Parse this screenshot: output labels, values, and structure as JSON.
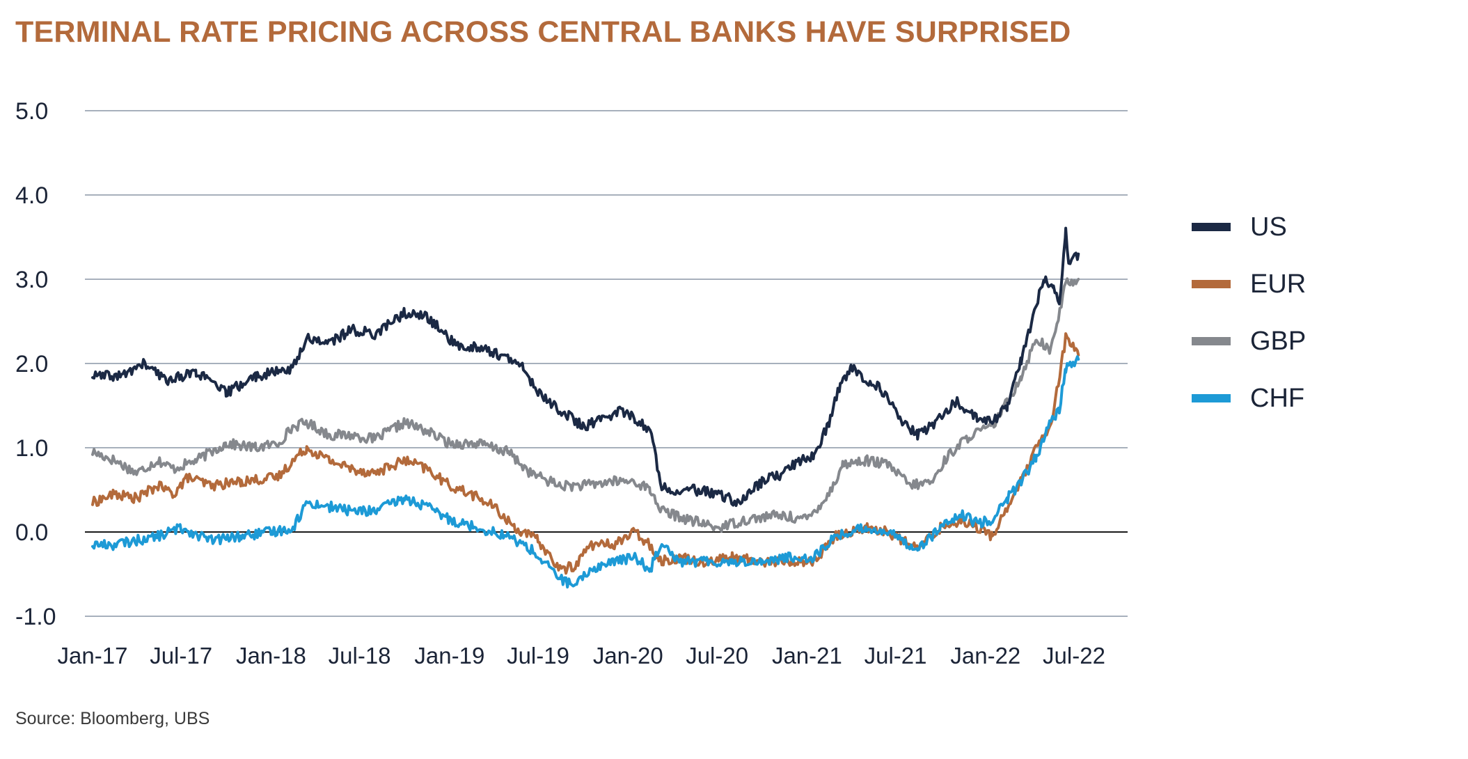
{
  "title": "TERMINAL RATE PRICING ACROSS CENTRAL BANKS HAVE SURPRISED",
  "source": "Source: Bloomberg, UBS",
  "chart_data": {
    "type": "line",
    "ylim": [
      -1.0,
      5.0
    ],
    "yticks": [
      "5.0",
      "4.0",
      "3.0",
      "2.0",
      "1.0",
      "0.0",
      "-1.0"
    ],
    "ytick_values": [
      5,
      4,
      3,
      2,
      1,
      0,
      -1
    ],
    "x_tick_labels": [
      "Jan-17",
      "Jul-17",
      "Jan-18",
      "Jul-18",
      "Jan-19",
      "Jul-19",
      "Jan-20",
      "Jul-20",
      "Jan-21",
      "Jul-21",
      "Jan-22",
      "Jul-22"
    ],
    "x_tick_dates": [
      "2017-01-01",
      "2017-07-01",
      "2018-01-01",
      "2018-07-01",
      "2019-01-01",
      "2019-07-01",
      "2020-01-01",
      "2020-07-01",
      "2021-01-01",
      "2021-07-01",
      "2022-01-01",
      "2022-07-01"
    ],
    "x_range": [
      "2017-01-01",
      "2022-07-15"
    ],
    "grid": true,
    "legend_position": "right",
    "series": [
      {
        "name": "US",
        "color": "#1b2944",
        "points": [
          [
            "2017-01-01",
            1.85
          ],
          [
            "2017-03-01",
            1.85
          ],
          [
            "2017-04-15",
            2.0
          ],
          [
            "2017-06-01",
            1.8
          ],
          [
            "2017-08-01",
            1.9
          ],
          [
            "2017-10-01",
            1.65
          ],
          [
            "2017-12-01",
            1.85
          ],
          [
            "2018-01-15",
            1.9
          ],
          [
            "2018-02-15",
            1.95
          ],
          [
            "2018-03-15",
            2.3
          ],
          [
            "2018-05-01",
            2.25
          ],
          [
            "2018-06-15",
            2.4
          ],
          [
            "2018-08-01",
            2.35
          ],
          [
            "2018-10-01",
            2.6
          ],
          [
            "2018-11-15",
            2.55
          ],
          [
            "2018-12-15",
            2.4
          ],
          [
            "2019-01-15",
            2.2
          ],
          [
            "2019-03-01",
            2.2
          ],
          [
            "2019-04-15",
            2.1
          ],
          [
            "2019-06-01",
            1.95
          ],
          [
            "2019-07-01",
            1.65
          ],
          [
            "2019-08-15",
            1.45
          ],
          [
            "2019-10-01",
            1.25
          ],
          [
            "2019-11-15",
            1.35
          ],
          [
            "2019-12-15",
            1.45
          ],
          [
            "2020-01-15",
            1.35
          ],
          [
            "2020-02-15",
            1.2
          ],
          [
            "2020-03-10",
            0.55
          ],
          [
            "2020-04-01",
            0.5
          ],
          [
            "2020-05-15",
            0.5
          ],
          [
            "2020-07-01",
            0.45
          ],
          [
            "2020-08-15",
            0.35
          ],
          [
            "2020-10-01",
            0.6
          ],
          [
            "2020-11-15",
            0.7
          ],
          [
            "2020-12-15",
            0.85
          ],
          [
            "2021-01-15",
            0.9
          ],
          [
            "2021-02-15",
            1.3
          ],
          [
            "2021-03-10",
            1.75
          ],
          [
            "2021-04-01",
            1.95
          ],
          [
            "2021-05-01",
            1.8
          ],
          [
            "2021-06-01",
            1.7
          ],
          [
            "2021-07-15",
            1.3
          ],
          [
            "2021-08-15",
            1.15
          ],
          [
            "2021-10-01",
            1.35
          ],
          [
            "2021-11-01",
            1.55
          ],
          [
            "2021-12-15",
            1.35
          ],
          [
            "2022-01-15",
            1.3
          ],
          [
            "2022-02-15",
            1.5
          ],
          [
            "2022-03-15",
            2.05
          ],
          [
            "2022-04-15",
            2.7
          ],
          [
            "2022-05-01",
            3.0
          ],
          [
            "2022-05-20",
            2.9
          ],
          [
            "2022-06-01",
            2.7
          ],
          [
            "2022-06-14",
            3.55
          ],
          [
            "2022-06-20",
            3.2
          ],
          [
            "2022-07-10",
            3.3
          ]
        ]
      },
      {
        "name": "EUR",
        "color": "#b36a3b",
        "points": [
          [
            "2017-01-01",
            0.35
          ],
          [
            "2017-02-15",
            0.45
          ],
          [
            "2017-04-01",
            0.4
          ],
          [
            "2017-05-15",
            0.55
          ],
          [
            "2017-06-15",
            0.45
          ],
          [
            "2017-07-15",
            0.65
          ],
          [
            "2017-09-01",
            0.55
          ],
          [
            "2017-11-01",
            0.6
          ],
          [
            "2018-01-15",
            0.65
          ],
          [
            "2018-02-15",
            0.85
          ],
          [
            "2018-03-15",
            1.0
          ],
          [
            "2018-05-01",
            0.85
          ],
          [
            "2018-06-15",
            0.75
          ],
          [
            "2018-08-01",
            0.7
          ],
          [
            "2018-10-01",
            0.85
          ],
          [
            "2018-11-15",
            0.75
          ],
          [
            "2019-01-01",
            0.55
          ],
          [
            "2019-02-15",
            0.45
          ],
          [
            "2019-04-01",
            0.3
          ],
          [
            "2019-05-15",
            0.05
          ],
          [
            "2019-07-01",
            -0.1
          ],
          [
            "2019-08-15",
            -0.45
          ],
          [
            "2019-09-15",
            -0.4
          ],
          [
            "2019-10-15",
            -0.15
          ],
          [
            "2019-12-01",
            -0.15
          ],
          [
            "2020-01-15",
            0.0
          ],
          [
            "2020-02-15",
            -0.15
          ],
          [
            "2020-03-10",
            -0.35
          ],
          [
            "2020-04-15",
            -0.3
          ],
          [
            "2020-06-01",
            -0.35
          ],
          [
            "2020-08-01",
            -0.3
          ],
          [
            "2020-10-01",
            -0.35
          ],
          [
            "2020-12-01",
            -0.35
          ],
          [
            "2021-01-15",
            -0.35
          ],
          [
            "2021-03-01",
            -0.05
          ],
          [
            "2021-05-01",
            0.05
          ],
          [
            "2021-06-15",
            -0.0
          ],
          [
            "2021-08-15",
            -0.2
          ],
          [
            "2021-10-01",
            0.05
          ],
          [
            "2021-11-15",
            0.15
          ],
          [
            "2021-12-15",
            0.05
          ],
          [
            "2022-01-15",
            -0.05
          ],
          [
            "2022-02-15",
            0.3
          ],
          [
            "2022-03-15",
            0.6
          ],
          [
            "2022-04-15",
            1.0
          ],
          [
            "2022-05-15",
            1.25
          ],
          [
            "2022-06-14",
            2.3
          ],
          [
            "2022-07-10",
            2.1
          ]
        ]
      },
      {
        "name": "GBP",
        "color": "#85888d",
        "points": [
          [
            "2017-01-01",
            0.95
          ],
          [
            "2017-02-15",
            0.85
          ],
          [
            "2017-04-01",
            0.7
          ],
          [
            "2017-05-15",
            0.85
          ],
          [
            "2017-06-15",
            0.75
          ],
          [
            "2017-08-01",
            0.85
          ],
          [
            "2017-10-01",
            1.05
          ],
          [
            "2017-12-01",
            1.0
          ],
          [
            "2018-01-15",
            1.05
          ],
          [
            "2018-02-15",
            1.25
          ],
          [
            "2018-03-15",
            1.3
          ],
          [
            "2018-05-01",
            1.15
          ],
          [
            "2018-06-15",
            1.15
          ],
          [
            "2018-08-01",
            1.1
          ],
          [
            "2018-10-01",
            1.3
          ],
          [
            "2018-11-15",
            1.2
          ],
          [
            "2019-01-01",
            1.05
          ],
          [
            "2019-03-01",
            1.05
          ],
          [
            "2019-05-01",
            0.95
          ],
          [
            "2019-06-15",
            0.7
          ],
          [
            "2019-08-15",
            0.55
          ],
          [
            "2019-10-01",
            0.55
          ],
          [
            "2019-12-01",
            0.6
          ],
          [
            "2020-01-15",
            0.6
          ],
          [
            "2020-02-15",
            0.5
          ],
          [
            "2020-03-10",
            0.25
          ],
          [
            "2020-05-01",
            0.15
          ],
          [
            "2020-07-01",
            0.05
          ],
          [
            "2020-09-01",
            0.15
          ],
          [
            "2020-11-01",
            0.2
          ],
          [
            "2021-01-01",
            0.15
          ],
          [
            "2021-02-15",
            0.45
          ],
          [
            "2021-03-15",
            0.8
          ],
          [
            "2021-05-01",
            0.85
          ],
          [
            "2021-06-15",
            0.8
          ],
          [
            "2021-08-01",
            0.55
          ],
          [
            "2021-09-15",
            0.6
          ],
          [
            "2021-10-15",
            0.9
          ],
          [
            "2021-12-01",
            1.15
          ],
          [
            "2022-01-15",
            1.25
          ],
          [
            "2022-02-15",
            1.55
          ],
          [
            "2022-03-15",
            1.85
          ],
          [
            "2022-04-15",
            2.3
          ],
          [
            "2022-05-15",
            2.15
          ],
          [
            "2022-06-14",
            2.95
          ],
          [
            "2022-07-10",
            3.0
          ]
        ]
      },
      {
        "name": "CHF",
        "color": "#1d9ad6",
        "points": [
          [
            "2017-01-01",
            -0.15
          ],
          [
            "2017-02-15",
            -0.15
          ],
          [
            "2017-04-01",
            -0.1
          ],
          [
            "2017-05-15",
            -0.05
          ],
          [
            "2017-07-01",
            0.05
          ],
          [
            "2017-09-01",
            -0.1
          ],
          [
            "2017-11-01",
            -0.05
          ],
          [
            "2018-01-01",
            -0.0
          ],
          [
            "2018-02-15",
            0.05
          ],
          [
            "2018-03-15",
            0.35
          ],
          [
            "2018-05-01",
            0.3
          ],
          [
            "2018-06-15",
            0.25
          ],
          [
            "2018-08-01",
            0.25
          ],
          [
            "2018-10-01",
            0.4
          ],
          [
            "2018-11-15",
            0.3
          ],
          [
            "2019-01-01",
            0.15
          ],
          [
            "2019-03-01",
            0.05
          ],
          [
            "2019-05-01",
            -0.05
          ],
          [
            "2019-06-15",
            -0.2
          ],
          [
            "2019-08-15",
            -0.55
          ],
          [
            "2019-09-15",
            -0.65
          ],
          [
            "2019-10-15",
            -0.45
          ],
          [
            "2019-12-01",
            -0.35
          ],
          [
            "2020-01-15",
            -0.3
          ],
          [
            "2020-02-15",
            -0.45
          ],
          [
            "2020-03-10",
            -0.1
          ],
          [
            "2020-04-15",
            -0.35
          ],
          [
            "2020-06-01",
            -0.35
          ],
          [
            "2020-08-01",
            -0.35
          ],
          [
            "2020-10-01",
            -0.35
          ],
          [
            "2020-12-01",
            -0.3
          ],
          [
            "2021-01-15",
            -0.3
          ],
          [
            "2021-03-01",
            -0.05
          ],
          [
            "2021-05-01",
            0.05
          ],
          [
            "2021-06-15",
            -0.0
          ],
          [
            "2021-08-15",
            -0.2
          ],
          [
            "2021-10-01",
            0.05
          ],
          [
            "2021-11-15",
            0.2
          ],
          [
            "2021-12-15",
            0.1
          ],
          [
            "2022-01-15",
            0.15
          ],
          [
            "2022-02-15",
            0.4
          ],
          [
            "2022-03-15",
            0.6
          ],
          [
            "2022-04-15",
            0.9
          ],
          [
            "2022-05-15",
            1.3
          ],
          [
            "2022-06-01",
            1.45
          ],
          [
            "2022-06-14",
            1.95
          ],
          [
            "2022-07-10",
            2.05
          ]
        ]
      }
    ]
  }
}
